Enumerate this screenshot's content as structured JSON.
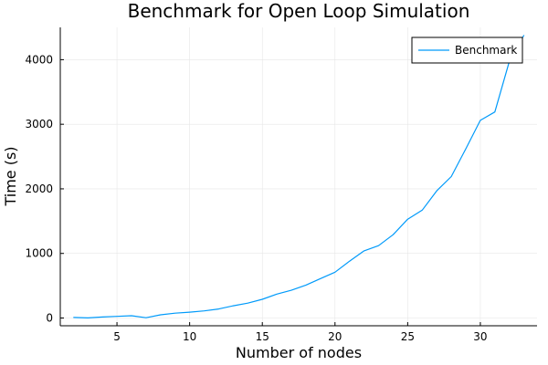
{
  "chart_data": {
    "type": "line",
    "title": "Benchmark for Open Loop Simulation",
    "xlabel": "Number of nodes",
    "ylabel": "Time (s)",
    "xlim": [
      1.1,
      33.9
    ],
    "ylim": [
      -120,
      4500
    ],
    "xticks": [
      5,
      10,
      15,
      20,
      25,
      30
    ],
    "yticks": [
      0,
      1000,
      2000,
      3000,
      4000
    ],
    "grid": true,
    "legend_position": "top-right",
    "colors": {
      "series": "#009AFA",
      "axis": "#000000",
      "grid": "#E6E6E6"
    },
    "series": [
      {
        "name": "Benchmark",
        "x": [
          2,
          3,
          4,
          5,
          6,
          7,
          8,
          9,
          10,
          11,
          12,
          13,
          14,
          15,
          16,
          17,
          18,
          19,
          20,
          21,
          22,
          23,
          24,
          25,
          26,
          27,
          28,
          29,
          30,
          31,
          32,
          33
        ],
        "y": [
          8,
          2,
          15,
          25,
          35,
          5,
          50,
          75,
          90,
          110,
          140,
          190,
          230,
          290,
          370,
          430,
          510,
          610,
          710,
          880,
          1040,
          1120,
          1290,
          1530,
          1670,
          1970,
          2190,
          2620,
          3060,
          3190,
          3980,
          4380
        ]
      }
    ]
  }
}
